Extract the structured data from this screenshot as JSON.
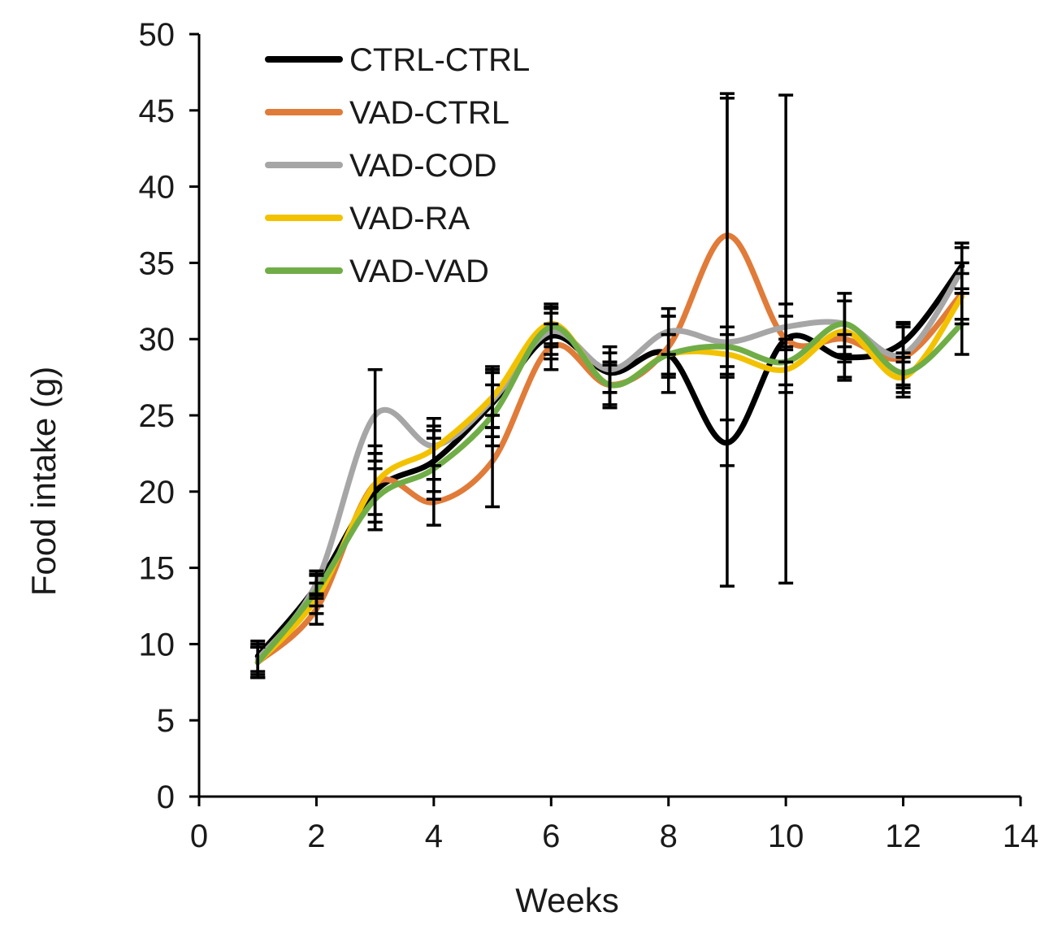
{
  "chart_data": {
    "type": "line",
    "title": "",
    "xlabel": "Weeks",
    "ylabel": "Food intake (g)",
    "xlim": [
      0,
      14
    ],
    "ylim": [
      0,
      50
    ],
    "xticks": [
      0,
      2,
      4,
      6,
      8,
      10,
      12,
      14
    ],
    "yticks": [
      0,
      5,
      10,
      15,
      20,
      25,
      30,
      35,
      40,
      45,
      50
    ],
    "grid": false,
    "legend_position": "top-left",
    "x": [
      1,
      2,
      3,
      4,
      5,
      6,
      7,
      8,
      9,
      10,
      11,
      12,
      13
    ],
    "series": [
      {
        "name": "CTRL-CTRL",
        "color": "#000000",
        "values": [
          9.2,
          13.8,
          20.0,
          22.0,
          25.8,
          30.2,
          27.8,
          29.0,
          23.2,
          30.0,
          28.8,
          29.8,
          34.8
        ],
        "errors": [
          1.0,
          0.8,
          2.5,
          2.0,
          2.2,
          1.5,
          1.3,
          2.5,
          1.5,
          1.5,
          1.5,
          1.3,
          1.5
        ]
      },
      {
        "name": "VAD-CTRL",
        "color": "#E07B39",
        "values": [
          8.8,
          12.3,
          20.5,
          19.3,
          22.0,
          29.5,
          27.0,
          29.5,
          36.8,
          30.0,
          30.0,
          28.8,
          33.0
        ],
        "errors": [
          1.0,
          1.0,
          2.5,
          1.5,
          3.0,
          1.5,
          1.5,
          2.0,
          9.3,
          16.0,
          2.5,
          2.0,
          2.0
        ]
      },
      {
        "name": "VAD-COD",
        "color": "#A6A6A6",
        "values": [
          9.0,
          14.0,
          25.0,
          23.0,
          26.0,
          30.5,
          28.0,
          30.5,
          29.8,
          30.8,
          31.0,
          29.0,
          34.5
        ],
        "errors": [
          1.0,
          0.8,
          3.0,
          1.3,
          1.8,
          1.5,
          1.5,
          1.5,
          16.0,
          1.5,
          2.0,
          2.0,
          1.5
        ]
      },
      {
        "name": "VAD-RA",
        "color": "#F2C200",
        "values": [
          8.8,
          13.0,
          20.5,
          22.8,
          26.2,
          31.0,
          27.0,
          29.0,
          29.0,
          28.0,
          30.5,
          27.5,
          32.8
        ],
        "errors": [
          1.0,
          1.0,
          2.0,
          2.0,
          2.0,
          1.3,
          1.5,
          1.3,
          1.3,
          1.5,
          2.0,
          1.3,
          1.5
        ]
      },
      {
        "name": "VAD-VAD",
        "color": "#70AD47",
        "values": [
          8.8,
          13.5,
          19.5,
          21.5,
          25.0,
          30.8,
          27.0,
          29.0,
          29.5,
          28.5,
          31.0,
          27.8,
          31.0
        ],
        "errors": [
          1.0,
          1.0,
          2.0,
          2.0,
          2.0,
          1.3,
          1.3,
          1.3,
          1.3,
          1.5,
          1.5,
          1.3,
          2.0
        ]
      }
    ]
  }
}
